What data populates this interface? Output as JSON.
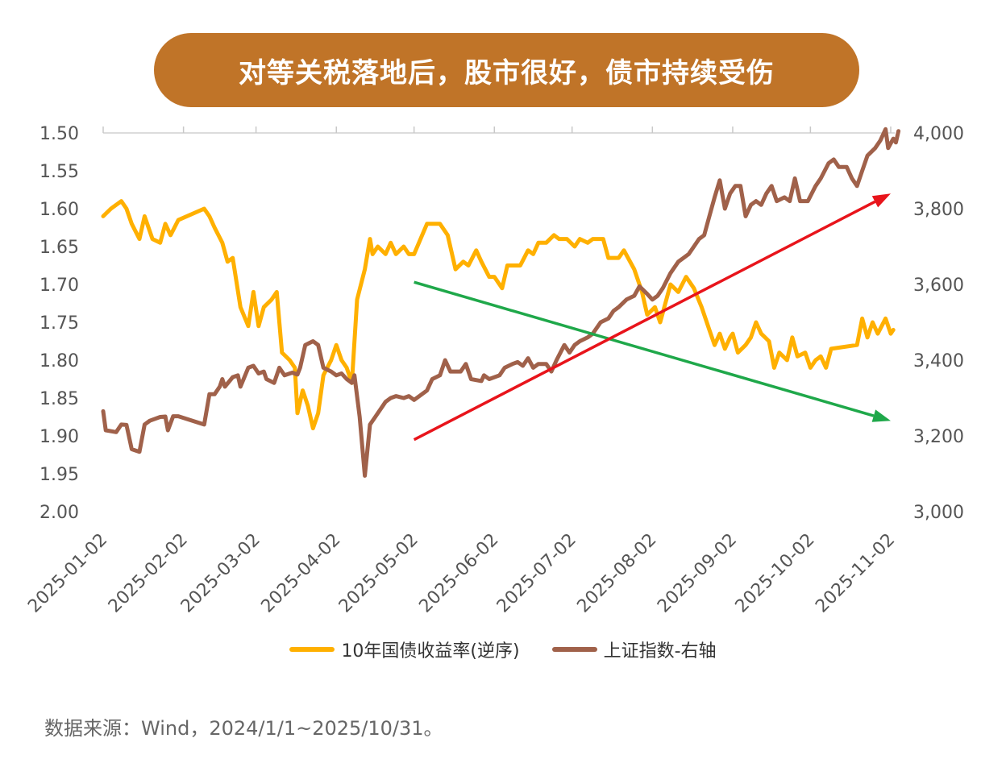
{
  "title": "对等关税落地后，股市很好，债市持续受伤",
  "source": "数据来源：Wind，2024/1/1~2025/10/31。",
  "colors": {
    "title_bg": "#C07428",
    "yield": "#FFB000",
    "index": "#A0614A",
    "up_arrow": "#E8141B",
    "down_arrow": "#1FA84A"
  },
  "chart_data": {
    "type": "line",
    "x_ticks": [
      "2025-01-02",
      "2025-02-02",
      "2025-03-02",
      "2025-04-02",
      "2025-05-02",
      "2025-06-02",
      "2025-07-02",
      "2025-08-02",
      "2025-09-02",
      "2025-10-02",
      "2025-11-02"
    ],
    "y_left": {
      "ticks": [
        "1.50",
        "1.55",
        "1.60",
        "1.65",
        "1.70",
        "1.75",
        "1.80",
        "1.85",
        "1.90",
        "1.95",
        "2.00"
      ],
      "range": [
        1.5,
        2.0
      ],
      "reversed": true
    },
    "y_right": {
      "ticks": [
        "3,000",
        "3,200",
        "3,400",
        "3,600",
        "3,800",
        "4,000"
      ],
      "range": [
        3000,
        4000
      ]
    },
    "series": [
      {
        "name": "10年国债收益率(逆序)",
        "axis": "left",
        "color": "#FFB000",
        "points": [
          [
            "2025-01-02",
            1.61
          ],
          [
            "2025-01-05",
            1.6
          ],
          [
            "2025-01-09",
            1.59
          ],
          [
            "2025-01-11",
            1.6
          ],
          [
            "2025-01-13",
            1.62
          ],
          [
            "2025-01-16",
            1.64
          ],
          [
            "2025-01-18",
            1.61
          ],
          [
            "2025-01-21",
            1.64
          ],
          [
            "2025-01-24",
            1.645
          ],
          [
            "2025-01-26",
            1.62
          ],
          [
            "2025-01-28",
            1.635
          ],
          [
            "2025-01-31",
            1.615
          ],
          [
            "2025-02-10",
            1.6
          ],
          [
            "2025-02-12",
            1.61
          ],
          [
            "2025-02-14",
            1.625
          ],
          [
            "2025-02-17",
            1.645
          ],
          [
            "2025-02-19",
            1.67
          ],
          [
            "2025-02-21",
            1.665
          ],
          [
            "2025-02-24",
            1.73
          ],
          [
            "2025-02-27",
            1.755
          ],
          [
            "2025-03-01",
            1.71
          ],
          [
            "2025-03-03",
            1.755
          ],
          [
            "2025-03-05",
            1.73
          ],
          [
            "2025-03-08",
            1.72
          ],
          [
            "2025-03-10",
            1.71
          ],
          [
            "2025-03-12",
            1.79
          ],
          [
            "2025-03-15",
            1.8
          ],
          [
            "2025-03-17",
            1.81
          ],
          [
            "2025-03-18",
            1.87
          ],
          [
            "2025-03-20",
            1.84
          ],
          [
            "2025-03-22",
            1.86
          ],
          [
            "2025-03-24",
            1.89
          ],
          [
            "2025-03-26",
            1.87
          ],
          [
            "2025-03-28",
            1.82
          ],
          [
            "2025-03-31",
            1.8
          ],
          [
            "2025-04-02",
            1.78
          ],
          [
            "2025-04-04",
            1.8
          ],
          [
            "2025-04-06",
            1.81
          ],
          [
            "2025-04-08",
            1.83
          ],
          [
            "2025-04-10",
            1.72
          ],
          [
            "2025-04-13",
            1.68
          ],
          [
            "2025-04-15",
            1.64
          ],
          [
            "2025-04-16",
            1.66
          ],
          [
            "2025-04-18",
            1.65
          ],
          [
            "2025-04-21",
            1.66
          ],
          [
            "2025-04-23",
            1.645
          ],
          [
            "2025-04-25",
            1.66
          ],
          [
            "2025-04-28",
            1.65
          ],
          [
            "2025-04-30",
            1.66
          ],
          [
            "2025-05-02",
            1.66
          ],
          [
            "2025-05-07",
            1.62
          ],
          [
            "2025-05-12",
            1.62
          ],
          [
            "2025-05-15",
            1.635
          ],
          [
            "2025-05-18",
            1.68
          ],
          [
            "2025-05-21",
            1.67
          ],
          [
            "2025-05-23",
            1.675
          ],
          [
            "2025-05-26",
            1.655
          ],
          [
            "2025-05-28",
            1.67
          ],
          [
            "2025-05-31",
            1.69
          ],
          [
            "2025-06-02",
            1.69
          ],
          [
            "2025-06-05",
            1.705
          ],
          [
            "2025-06-07",
            1.675
          ],
          [
            "2025-06-12",
            1.675
          ],
          [
            "2025-06-15",
            1.655
          ],
          [
            "2025-06-17",
            1.66
          ],
          [
            "2025-06-19",
            1.645
          ],
          [
            "2025-06-22",
            1.645
          ],
          [
            "2025-06-25",
            1.635
          ],
          [
            "2025-06-27",
            1.64
          ],
          [
            "2025-06-30",
            1.64
          ],
          [
            "2025-07-03",
            1.65
          ],
          [
            "2025-07-05",
            1.64
          ],
          [
            "2025-07-08",
            1.645
          ],
          [
            "2025-07-10",
            1.64
          ],
          [
            "2025-07-14",
            1.64
          ],
          [
            "2025-07-16",
            1.665
          ],
          [
            "2025-07-20",
            1.665
          ],
          [
            "2025-07-22",
            1.655
          ],
          [
            "2025-07-26",
            1.68
          ],
          [
            "2025-07-29",
            1.71
          ],
          [
            "2025-07-31",
            1.74
          ],
          [
            "2025-08-03",
            1.73
          ],
          [
            "2025-08-05",
            1.75
          ],
          [
            "2025-08-07",
            1.725
          ],
          [
            "2025-08-09",
            1.7
          ],
          [
            "2025-08-12",
            1.71
          ],
          [
            "2025-08-15",
            1.69
          ],
          [
            "2025-08-18",
            1.705
          ],
          [
            "2025-08-21",
            1.73
          ],
          [
            "2025-08-24",
            1.76
          ],
          [
            "2025-08-26",
            1.78
          ],
          [
            "2025-08-28",
            1.765
          ],
          [
            "2025-08-30",
            1.785
          ],
          [
            "2025-09-01",
            1.77
          ],
          [
            "2025-09-02",
            1.765
          ],
          [
            "2025-09-04",
            1.79
          ],
          [
            "2025-09-07",
            1.78
          ],
          [
            "2025-09-09",
            1.77
          ],
          [
            "2025-09-11",
            1.75
          ],
          [
            "2025-09-13",
            1.765
          ],
          [
            "2025-09-16",
            1.775
          ],
          [
            "2025-09-18",
            1.81
          ],
          [
            "2025-09-20",
            1.79
          ],
          [
            "2025-09-23",
            1.8
          ],
          [
            "2025-09-25",
            1.77
          ],
          [
            "2025-09-27",
            1.795
          ],
          [
            "2025-09-30",
            1.79
          ],
          [
            "2025-10-02",
            1.81
          ],
          [
            "2025-10-04",
            1.8
          ],
          [
            "2025-10-06",
            1.795
          ],
          [
            "2025-10-08",
            1.81
          ],
          [
            "2025-10-10",
            1.785
          ],
          [
            "2025-10-20",
            1.78
          ],
          [
            "2025-10-22",
            1.745
          ],
          [
            "2025-10-24",
            1.77
          ],
          [
            "2025-10-26",
            1.75
          ],
          [
            "2025-10-28",
            1.765
          ],
          [
            "2025-10-31",
            1.745
          ],
          [
            "2025-11-02",
            1.765
          ],
          [
            "2025-11-03",
            1.76
          ]
        ]
      },
      {
        "name": "上证指数-右轴",
        "axis": "right",
        "color": "#A0614A",
        "points": [
          [
            "2025-01-02",
            3265
          ],
          [
            "2025-01-03",
            3215
          ],
          [
            "2025-01-07",
            3210
          ],
          [
            "2025-01-09",
            3230
          ],
          [
            "2025-01-11",
            3229
          ],
          [
            "2025-01-13",
            3165
          ],
          [
            "2025-01-16",
            3158
          ],
          [
            "2025-01-18",
            3230
          ],
          [
            "2025-01-20",
            3240
          ],
          [
            "2025-01-24",
            3250
          ],
          [
            "2025-01-26",
            3251
          ],
          [
            "2025-01-27",
            3215
          ],
          [
            "2025-01-29",
            3252
          ],
          [
            "2025-01-31",
            3252
          ],
          [
            "2025-02-10",
            3230
          ],
          [
            "2025-02-12",
            3310
          ],
          [
            "2025-02-14",
            3310
          ],
          [
            "2025-02-16",
            3330
          ],
          [
            "2025-02-17",
            3350
          ],
          [
            "2025-02-18",
            3330
          ],
          [
            "2025-02-21",
            3355
          ],
          [
            "2025-02-23",
            3360
          ],
          [
            "2025-02-24",
            3330
          ],
          [
            "2025-02-27",
            3380
          ],
          [
            "2025-03-01",
            3385
          ],
          [
            "2025-03-03",
            3365
          ],
          [
            "2025-03-05",
            3370
          ],
          [
            "2025-03-06",
            3350
          ],
          [
            "2025-03-09",
            3340
          ],
          [
            "2025-03-11",
            3380
          ],
          [
            "2025-03-13",
            3360
          ],
          [
            "2025-03-16",
            3367
          ],
          [
            "2025-03-18",
            3362
          ],
          [
            "2025-03-19",
            3380
          ],
          [
            "2025-03-21",
            3440
          ],
          [
            "2025-03-24",
            3450
          ],
          [
            "2025-03-26",
            3440
          ],
          [
            "2025-03-28",
            3380
          ],
          [
            "2025-03-31",
            3370
          ],
          [
            "2025-04-02",
            3360
          ],
          [
            "2025-04-04",
            3365
          ],
          [
            "2025-04-06",
            3350
          ],
          [
            "2025-04-08",
            3340
          ],
          [
            "2025-04-09",
            3360
          ],
          [
            "2025-04-11",
            3250
          ],
          [
            "2025-04-13",
            3095
          ],
          [
            "2025-04-15",
            3230
          ],
          [
            "2025-04-17",
            3250
          ],
          [
            "2025-04-19",
            3270
          ],
          [
            "2025-04-21",
            3290
          ],
          [
            "2025-04-23",
            3300
          ],
          [
            "2025-04-25",
            3305
          ],
          [
            "2025-04-28",
            3300
          ],
          [
            "2025-04-30",
            3305
          ],
          [
            "2025-05-02",
            3295
          ],
          [
            "2025-05-07",
            3320
          ],
          [
            "2025-05-09",
            3350
          ],
          [
            "2025-05-12",
            3360
          ],
          [
            "2025-05-14",
            3400
          ],
          [
            "2025-05-16",
            3370
          ],
          [
            "2025-05-20",
            3370
          ],
          [
            "2025-05-22",
            3390
          ],
          [
            "2025-05-24",
            3350
          ],
          [
            "2025-05-28",
            3345
          ],
          [
            "2025-05-29",
            3360
          ],
          [
            "2025-05-31",
            3350
          ],
          [
            "2025-06-04",
            3360
          ],
          [
            "2025-06-06",
            3380
          ],
          [
            "2025-06-09",
            3390
          ],
          [
            "2025-06-11",
            3395
          ],
          [
            "2025-06-13",
            3385
          ],
          [
            "2025-06-15",
            3405
          ],
          [
            "2025-06-17",
            3380
          ],
          [
            "2025-06-19",
            3390
          ],
          [
            "2025-06-22",
            3390
          ],
          [
            "2025-06-24",
            3370
          ],
          [
            "2025-06-26",
            3400
          ],
          [
            "2025-06-29",
            3440
          ],
          [
            "2025-07-01",
            3420
          ],
          [
            "2025-07-03",
            3440
          ],
          [
            "2025-07-05",
            3450
          ],
          [
            "2025-07-08",
            3460
          ],
          [
            "2025-07-10",
            3470
          ],
          [
            "2025-07-13",
            3500
          ],
          [
            "2025-07-16",
            3510
          ],
          [
            "2025-07-18",
            3530
          ],
          [
            "2025-07-20",
            3540
          ],
          [
            "2025-07-23",
            3560
          ],
          [
            "2025-07-26",
            3570
          ],
          [
            "2025-07-28",
            3595
          ],
          [
            "2025-07-31",
            3575
          ],
          [
            "2025-08-02",
            3560
          ],
          [
            "2025-08-04",
            3570
          ],
          [
            "2025-08-06",
            3590
          ],
          [
            "2025-08-09",
            3630
          ],
          [
            "2025-08-12",
            3660
          ],
          [
            "2025-08-14",
            3670
          ],
          [
            "2025-08-16",
            3680
          ],
          [
            "2025-08-18",
            3700
          ],
          [
            "2025-08-20",
            3720
          ],
          [
            "2025-08-22",
            3730
          ],
          [
            "2025-08-24",
            3780
          ],
          [
            "2025-08-26",
            3830
          ],
          [
            "2025-08-28",
            3875
          ],
          [
            "2025-08-30",
            3800
          ],
          [
            "2025-09-01",
            3840
          ],
          [
            "2025-09-03",
            3860
          ],
          [
            "2025-09-05",
            3860
          ],
          [
            "2025-09-07",
            3780
          ],
          [
            "2025-09-09",
            3810
          ],
          [
            "2025-09-11",
            3820
          ],
          [
            "2025-09-13",
            3810
          ],
          [
            "2025-09-15",
            3840
          ],
          [
            "2025-09-17",
            3860
          ],
          [
            "2025-09-19",
            3820
          ],
          [
            "2025-09-22",
            3830
          ],
          [
            "2025-09-24",
            3820
          ],
          [
            "2025-09-26",
            3880
          ],
          [
            "2025-09-28",
            3820
          ],
          [
            "2025-10-01",
            3820
          ],
          [
            "2025-10-04",
            3860
          ],
          [
            "2025-10-06",
            3880
          ],
          [
            "2025-10-09",
            3920
          ],
          [
            "2025-10-11",
            3930
          ],
          [
            "2025-10-13",
            3910
          ],
          [
            "2025-10-16",
            3910
          ],
          [
            "2025-10-18",
            3880
          ],
          [
            "2025-10-20",
            3860
          ],
          [
            "2025-10-22",
            3900
          ],
          [
            "2025-10-24",
            3940
          ],
          [
            "2025-10-27",
            3960
          ],
          [
            "2025-10-29",
            3980
          ],
          [
            "2025-10-31",
            4010
          ],
          [
            "2025-11-01",
            3960
          ],
          [
            "2025-11-03",
            3985
          ],
          [
            "2025-11-04",
            3975
          ],
          [
            "2025-11-05",
            4005
          ]
        ]
      }
    ],
    "arrows": [
      {
        "color": "#1FA84A",
        "from": [
          "2025-05-02",
          1.697
        ],
        "to": [
          "2025-11-02",
          1.88
        ]
      },
      {
        "color": "#E8141B",
        "from": [
          "2025-05-02",
          1.905
        ],
        "to": [
          "2025-11-02",
          1.58
        ]
      }
    ]
  }
}
